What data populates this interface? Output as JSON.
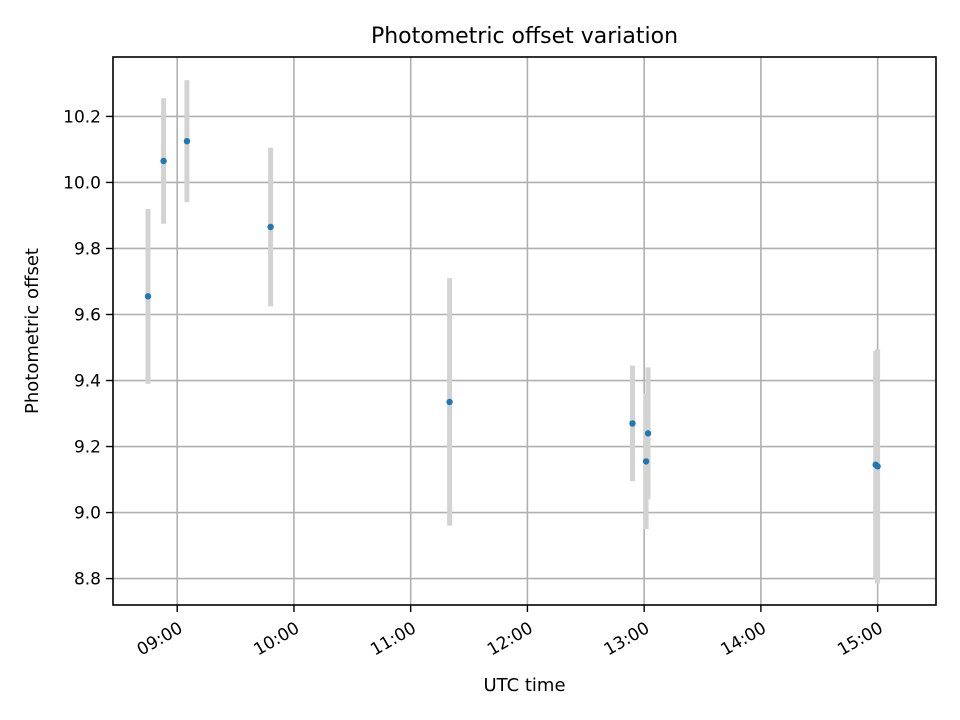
{
  "chart_data": {
    "type": "scatter",
    "title": "Photometric offset variation",
    "xlabel": "UTC time",
    "ylabel": "Photometric offset",
    "x_format": "HH:MM",
    "x_ticks": [
      "09:00",
      "10:00",
      "11:00",
      "12:00",
      "13:00",
      "14:00",
      "15:00"
    ],
    "x_range": [
      "08:27",
      "15:30"
    ],
    "y_ticks": [
      8.8,
      9.0,
      9.2,
      9.4,
      9.6,
      9.8,
      10.0,
      10.2
    ],
    "ylim": [
      8.72,
      10.38
    ],
    "grid": true,
    "marker_color": "#1f77b4",
    "errorbar_color": "#d3d3d3",
    "points": [
      {
        "x": "08:45",
        "y": 9.655,
        "err": 0.265
      },
      {
        "x": "08:53",
        "y": 10.065,
        "err": 0.19
      },
      {
        "x": "09:05",
        "y": 10.125,
        "err": 0.185
      },
      {
        "x": "09:48",
        "y": 9.865,
        "err": 0.24
      },
      {
        "x": "11:20",
        "y": 9.335,
        "err": 0.375
      },
      {
        "x": "12:54",
        "y": 9.27,
        "err": 0.175
      },
      {
        "x": "13:01",
        "y": 9.155,
        "err": 0.205
      },
      {
        "x": "13:02",
        "y": 9.24,
        "err": 0.2
      },
      {
        "x": "14:59",
        "y": 9.145,
        "err": 0.345
      },
      {
        "x": "15:00",
        "y": 9.14,
        "err": 0.355
      }
    ]
  }
}
